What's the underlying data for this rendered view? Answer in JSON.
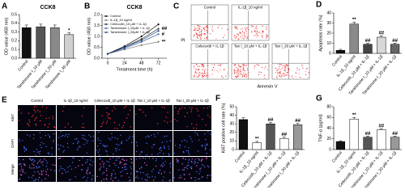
{
  "chart_data": [
    {
      "panel": "A",
      "type": "bar",
      "title": "CCK8",
      "ylabel": "OD value (450 nm)",
      "categories": [
        "Control",
        "Tanshinone I_10 μM",
        "Tanshinone I_20 μM",
        "Tanshinone I_40 μM"
      ],
      "values": [
        0.35,
        0.36,
        0.35,
        0.27
      ],
      "errors": [
        0.03,
        0.03,
        0.03,
        0.02
      ],
      "colors": [
        "#111111",
        "#555555",
        "#8a8a8a",
        "#d0d0d0"
      ],
      "annotations": [
        null,
        null,
        null,
        "*"
      ],
      "ylim": [
        0,
        0.5
      ],
      "yticks": [
        {
          "value": 0,
          "label": "0.0"
        },
        0.1,
        0.2,
        0.3,
        0.4,
        0.5
      ]
    },
    {
      "panel": "B",
      "type": "line",
      "title": "CCK8",
      "ylabel": "OD value (450 nm)",
      "xlabel": "Treatment time (h)",
      "x": [
        0,
        24,
        48,
        72
      ],
      "xlim": [
        -8,
        84
      ],
      "xticks": [
        0,
        24,
        48,
        72
      ],
      "series": [
        {
          "name": "Control",
          "color": "#000000",
          "values": [
            0.2,
            0.55,
            1.0,
            1.55
          ]
        },
        {
          "name": "IL-1β_10 ng/ml",
          "color": "#777777",
          "values": [
            0.2,
            0.4,
            0.6,
            0.75
          ],
          "annotation": "**"
        },
        {
          "name": "Celecoxib_10 μM + IL-1β",
          "color": "#2b2b2b",
          "values": [
            0.2,
            0.5,
            0.88,
            1.35
          ],
          "annotation": "##"
        },
        {
          "name": "Tanshinone I_10μM + IL-1β",
          "color": "#3a5fa0",
          "values": [
            0.2,
            0.45,
            0.75,
            1.1
          ],
          "annotation": "#"
        },
        {
          "name": "Tanshinone I_20μM + IL-1β",
          "color": "#1f3f7a",
          "values": [
            0.2,
            0.5,
            0.82,
            1.25
          ]
        }
      ],
      "ylim": [
        0,
        2
      ],
      "yticks": [
        {
          "value": 0,
          "label": "0.0"
        },
        0.5,
        {
          "value": 1,
          "label": "1.0"
        },
        1.5,
        {
          "value": 2,
          "label": "2.0"
        }
      ]
    },
    {
      "panel": "D",
      "type": "bar",
      "ylabel": "Apoptosis rate (%)",
      "categories": [
        "Control",
        "IL-1β_10 ng/ml",
        "Celecoxib_10 μM + IL-1β",
        "Tanshinone I_10 μM + IL-1β",
        "Tanshinone I_20 μM + IL-1β"
      ],
      "values": [
        3,
        29,
        9,
        16,
        9
      ],
      "errors": [
        1,
        2,
        1,
        1.5,
        1
      ],
      "colors": [
        "#111111",
        "#8a8a8a",
        "#444444",
        "#d8d8d8",
        "#666666"
      ],
      "annotations": [
        null,
        "**",
        "##",
        "##",
        "##"
      ],
      "ylim": [
        0,
        40
      ],
      "yticks": [
        0,
        10,
        20,
        30,
        40
      ]
    },
    {
      "panel": "F",
      "type": "bar",
      "ylabel": "Ki67 positive cell rate (%)",
      "categories": [
        "Control",
        "IL-1β_10 ng/ml",
        "Celecoxib_10 μM + IL-1β",
        "Tanshinone I_10 μM + IL-1β",
        "Tanshinone I_20 μM + IL-1β"
      ],
      "values": [
        35,
        8,
        30,
        13,
        29
      ],
      "errors": [
        2,
        1.5,
        1.5,
        1.5,
        1.5
      ],
      "colors": [
        "#111111",
        "#ffffff",
        "#555555",
        "#ffffff",
        "#999999"
      ],
      "annotations": [
        null,
        "**",
        "##",
        "##",
        "##"
      ],
      "ylim": [
        0,
        50
      ],
      "yticks": [
        0,
        10,
        20,
        30,
        40,
        50
      ]
    },
    {
      "panel": "G",
      "type": "bar",
      "ylabel": "TNF-α (pg/ml)",
      "categories": [
        "Control",
        "IL-1β_10 ng/ml",
        "Celecoxib_10 μM + IL-1β",
        "Tanshinone I_10 μM + IL-1β",
        "Tanshinone I_20 μM + IL-1β"
      ],
      "values": [
        15,
        57,
        23,
        37,
        23
      ],
      "errors": [
        1.5,
        3,
        2,
        2,
        2
      ],
      "colors": [
        "#111111",
        "#ffffff",
        "#555555",
        "#ffffff",
        "#999999"
      ],
      "annotations": [
        null,
        "**",
        "##",
        "##",
        "##"
      ],
      "ylim": [
        0,
        80
      ],
      "yticks": [
        0,
        20,
        40,
        60,
        80
      ]
    }
  ],
  "image_panels": {
    "flow": {
      "panel": "C",
      "ylabel": "PI",
      "xlabel": "Annexin V",
      "labels": [
        "Control",
        "IL-1β_10 ng/ml",
        "Celecoxib + IL-1β",
        "Tan I_10 μM + IL-1β",
        "Tan I_20 μM + IL-1β"
      ]
    },
    "stain": {
      "panel": "E",
      "rows": [
        "Ki67",
        "DAPI",
        "Merge"
      ],
      "columns": [
        "Control",
        "IL-1β_10 ng/ml",
        "Celecoxib_10 μM + IL-1β",
        "Tan I_10 μM + IL-1β",
        "Tan I_20 μM + IL-1β"
      ]
    }
  }
}
